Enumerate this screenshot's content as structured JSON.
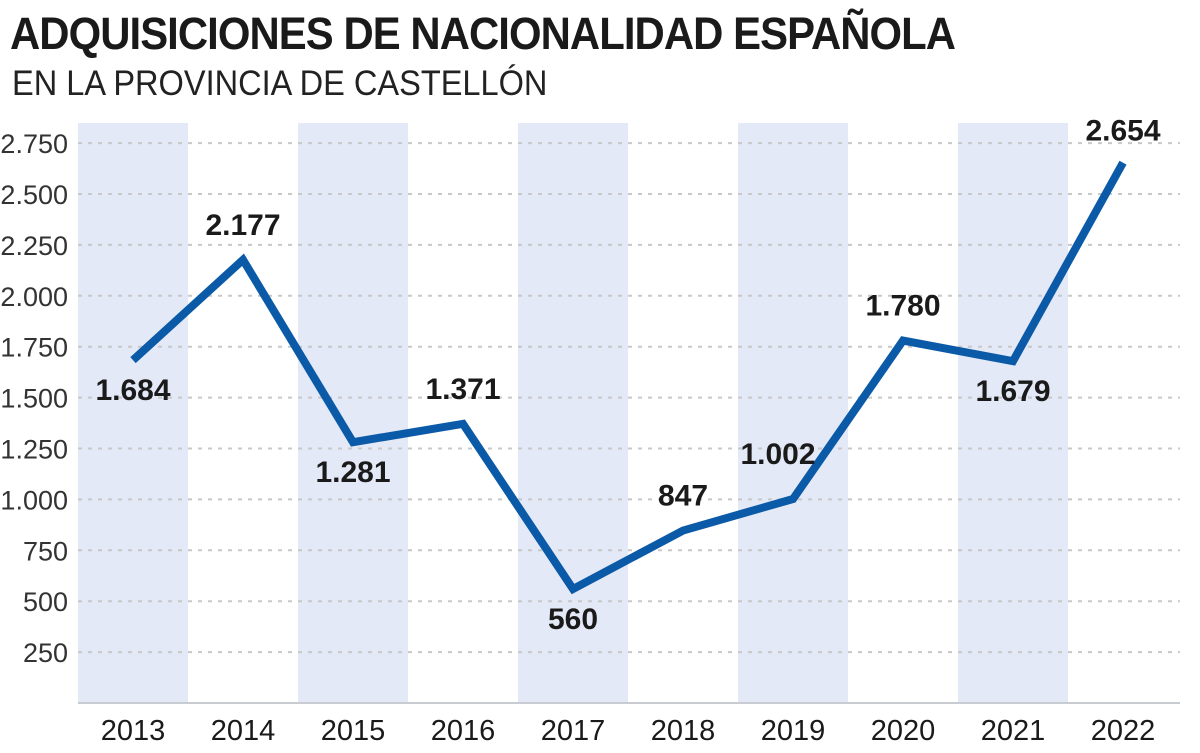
{
  "chart_data": {
    "type": "line",
    "title": "ADQUISICIONES DE NACIONALIDAD ESPAÑOLA",
    "subtitle": "EN LA PROVINCIA DE CASTELLÓN",
    "xlabel": "",
    "ylabel": "",
    "categories": [
      "2013",
      "2014",
      "2015",
      "2016",
      "2017",
      "2018",
      "2019",
      "2020",
      "2021",
      "2022"
    ],
    "values": [
      1684,
      2177,
      1281,
      1371,
      560,
      847,
      1002,
      1780,
      1679,
      2654
    ],
    "data_labels": [
      "1.684",
      "2.177",
      "1.281",
      "1.371",
      "560",
      "847",
      "1.002",
      "1.780",
      "1.679",
      "2.654"
    ],
    "yticks": [
      250,
      500,
      750,
      1000,
      1250,
      1500,
      1750,
      2000,
      2250,
      2500,
      2750
    ],
    "ytick_labels": [
      "250",
      "500",
      "750",
      "1.000",
      "1.250",
      "1.500",
      "1.750",
      "2.000",
      "2.250",
      "2.500",
      "2.750"
    ],
    "ylim": [
      0,
      2850
    ],
    "grid": "horizontal dashed",
    "alternating_bands": true,
    "colors": {
      "line": "#0a5aa8",
      "band": "#e4e9f7",
      "grid": "#c8c8c8"
    }
  }
}
